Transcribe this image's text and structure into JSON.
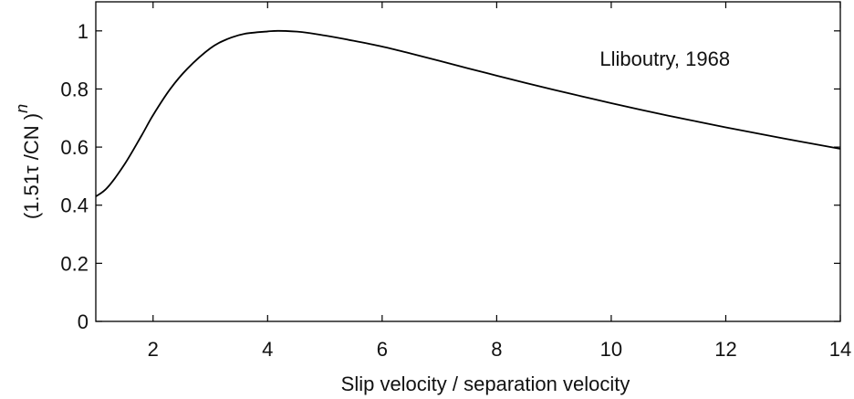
{
  "chart_data": {
    "type": "line",
    "title": "",
    "xlabel": "Slip velocity / separation velocity",
    "ylabel": "(1.51τ /CN )",
    "ylabel_exponent": "n",
    "xlim": [
      1,
      14
    ],
    "ylim": [
      0,
      1.1
    ],
    "xticks": [
      2,
      4,
      6,
      8,
      10,
      12,
      14
    ],
    "yticks": [
      0,
      0.2,
      0.4,
      0.6,
      0.8,
      1
    ],
    "ytick_labels": [
      "0",
      "0.2",
      "0.4",
      "0.6",
      "0.8",
      "1"
    ],
    "grid": false,
    "annotation": {
      "text": "Lliboutry, 1968",
      "x": 9.8,
      "y": 0.88
    },
    "series": [
      {
        "x": [
          1.0,
          1.2,
          1.5,
          1.8,
          2.0,
          2.3,
          2.6,
          3.0,
          3.3,
          3.6,
          4.0,
          4.2,
          4.6,
          5.0,
          5.5,
          6.0,
          6.5,
          7.0,
          7.5,
          8.0,
          8.5,
          9.0,
          9.5,
          10.0,
          10.5,
          11.0,
          11.5,
          12.0,
          12.5,
          13.0,
          13.5,
          14.0
        ],
        "y": [
          0.43,
          0.46,
          0.54,
          0.64,
          0.71,
          0.8,
          0.87,
          0.94,
          0.972,
          0.99,
          0.998,
          1.0,
          0.996,
          0.984,
          0.966,
          0.946,
          0.922,
          0.897,
          0.871,
          0.846,
          0.821,
          0.797,
          0.774,
          0.751,
          0.729,
          0.708,
          0.688,
          0.668,
          0.649,
          0.63,
          0.612,
          0.594
        ],
        "color": "#000000"
      }
    ]
  }
}
